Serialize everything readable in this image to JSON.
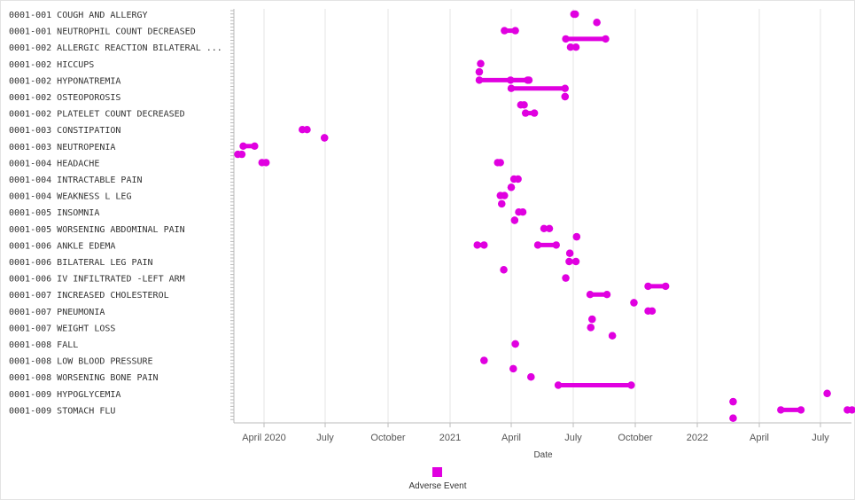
{
  "chart_data": {
    "type": "timeline",
    "xlabel": "Date",
    "x_ticks": [
      "April 2020",
      "July",
      "October",
      "2021",
      "April",
      "July",
      "October",
      "2022",
      "April",
      "July"
    ],
    "x_range": [
      "2020-02-15",
      "2022-08-20"
    ],
    "legend": {
      "label": "Adverse Event",
      "color": "#e000e0",
      "placement": "bottom-center"
    },
    "categories": [
      "0001-001 COUGH AND ALLERGY",
      "0001-001 NEUTROPHIL COUNT DECREASED",
      "0001-002 ALLERGIC REACTION  BILATERAL ...",
      "0001-002 HICCUPS",
      "0001-002 HYPONATREMIA",
      "0001-002 OSTEOPOROSIS",
      "0001-002 PLATELET COUNT DECREASED",
      "0001-003 CONSTIPATION",
      "0001-003 NEUTROPENIA",
      "0001-004 HEADACHE",
      "0001-004 INTRACTABLE PAIN",
      "0001-004 WEAKNESS L LEG",
      "0001-005 INSOMNIA",
      "0001-005 WORSENING ABDOMINAL PAIN",
      "0001-006 ANKLE EDEMA",
      "0001-006 BILATERAL LEG PAIN",
      "0001-006 IV INFILTRATED -LEFT ARM",
      "0001-007 INCREASED CHOLESTEROL",
      "0001-007 PNEUMONIA",
      "0001-007 WEIGHT LOSS",
      "0001-008 FALL",
      "0001-008 LOW BLOOD PRESSURE",
      "0001-008 WORSENING BONE PAIN",
      "0001-009 HYPOGLYCEMIA",
      "0001-009 STOMACH FLU"
    ],
    "events": [
      {
        "row": 0,
        "start": "2021-07-02",
        "end": "2021-07-04"
      },
      {
        "row": 0,
        "start": "2021-08-05",
        "end": "2021-08-05"
      },
      {
        "row": 1,
        "start": "2021-03-22",
        "end": "2021-04-07"
      },
      {
        "row": 1,
        "start": "2021-06-20",
        "end": "2021-08-18"
      },
      {
        "row": 2,
        "start": "2021-06-27",
        "end": "2021-07-05"
      },
      {
        "row": 3,
        "start": "2021-02-15",
        "end": "2021-02-15"
      },
      {
        "row": 3,
        "start": "2021-02-13",
        "end": "2021-02-13"
      },
      {
        "row": 3,
        "start": "2021-02-13",
        "end": "2021-04-27"
      },
      {
        "row": 4,
        "start": "2021-03-31",
        "end": "2021-04-25"
      },
      {
        "row": 4,
        "start": "2021-04-01",
        "end": "2021-06-19"
      },
      {
        "row": 5,
        "start": "2021-06-19",
        "end": "2021-06-19"
      },
      {
        "row": 5,
        "start": "2021-04-15",
        "end": "2021-04-20"
      },
      {
        "row": 6,
        "start": "2021-04-22",
        "end": "2021-05-05"
      },
      {
        "row": 7,
        "start": "2020-05-28",
        "end": "2020-06-04"
      },
      {
        "row": 7,
        "start": "2020-06-30",
        "end": "2020-06-30"
      },
      {
        "row": 8,
        "start": "2020-03-01",
        "end": "2020-03-18"
      },
      {
        "row": 8,
        "start": "2020-02-22",
        "end": "2020-02-28"
      },
      {
        "row": 8,
        "start": "2020-03-29",
        "end": "2020-04-04"
      },
      {
        "row": 9,
        "start": "2021-03-12",
        "end": "2021-03-16"
      },
      {
        "row": 10,
        "start": "2021-04-05",
        "end": "2021-04-11"
      },
      {
        "row": 10,
        "start": "2021-04-01",
        "end": "2021-04-01"
      },
      {
        "row": 11,
        "start": "2021-03-16",
        "end": "2021-03-22"
      },
      {
        "row": 11,
        "start": "2021-03-18",
        "end": "2021-03-18"
      },
      {
        "row": 12,
        "start": "2021-04-12",
        "end": "2021-04-18"
      },
      {
        "row": 12,
        "start": "2021-04-06",
        "end": "2021-04-06"
      },
      {
        "row": 13,
        "start": "2021-05-19",
        "end": "2021-05-27"
      },
      {
        "row": 13,
        "start": "2021-07-06",
        "end": "2021-07-06"
      },
      {
        "row": 13,
        "start": "2021-05-10",
        "end": "2021-06-06"
      },
      {
        "row": 14,
        "start": "2021-02-10",
        "end": "2021-02-20"
      },
      {
        "row": 14,
        "start": "2021-06-26",
        "end": "2021-06-26"
      },
      {
        "row": 15,
        "start": "2021-06-25",
        "end": "2021-07-05"
      },
      {
        "row": 15,
        "start": "2021-03-21",
        "end": "2021-03-21"
      },
      {
        "row": 16,
        "start": "2021-06-20",
        "end": "2021-06-20"
      },
      {
        "row": 16,
        "start": "2021-10-20",
        "end": "2021-11-15"
      },
      {
        "row": 17,
        "start": "2021-07-26",
        "end": "2021-08-20"
      },
      {
        "row": 17,
        "start": "2021-09-29",
        "end": "2021-09-29"
      },
      {
        "row": 18,
        "start": "2021-10-20",
        "end": "2021-10-26"
      },
      {
        "row": 18,
        "start": "2021-07-29",
        "end": "2021-07-29"
      },
      {
        "row": 19,
        "start": "2021-07-27",
        "end": "2021-07-27"
      },
      {
        "row": 19,
        "start": "2021-08-28",
        "end": "2021-08-28"
      },
      {
        "row": 20,
        "start": "2021-04-07",
        "end": "2021-04-07"
      },
      {
        "row": 21,
        "start": "2021-02-20",
        "end": "2021-02-20"
      },
      {
        "row": 21,
        "start": "2021-04-04",
        "end": "2021-04-04"
      },
      {
        "row": 22,
        "start": "2021-04-30",
        "end": "2021-04-30"
      },
      {
        "row": 22,
        "start": "2021-06-09",
        "end": "2021-09-25"
      },
      {
        "row": 23,
        "start": "2022-07-11",
        "end": "2022-07-11"
      },
      {
        "row": 23,
        "start": "2022-02-22",
        "end": "2022-02-22"
      },
      {
        "row": 23,
        "start": "2022-05-03",
        "end": "2022-06-02"
      },
      {
        "row": 24,
        "start": "2022-08-10",
        "end": "2022-08-17"
      },
      {
        "row": 24,
        "start": "2022-02-22",
        "end": "2022-02-22"
      }
    ]
  }
}
